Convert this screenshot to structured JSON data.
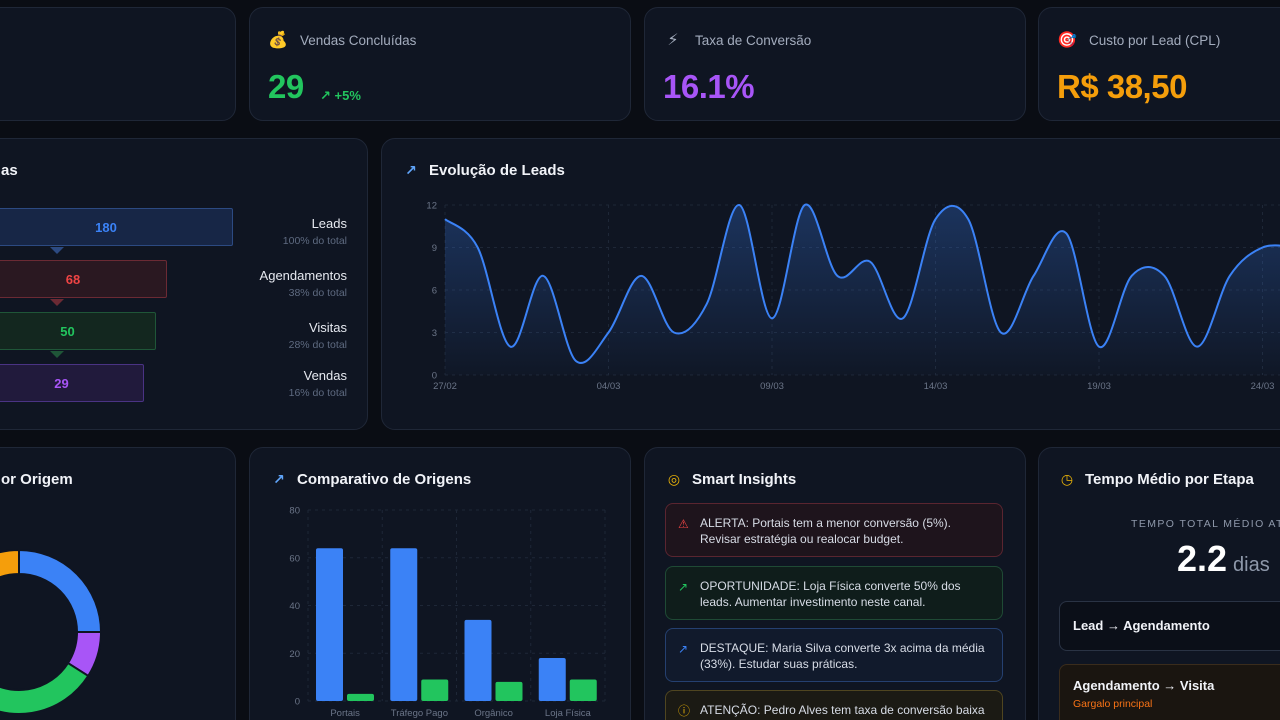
{
  "kpis": [
    {
      "icon": "money-bag-icon",
      "glyph": "💰",
      "label": "Vendas Concluídas",
      "value": "29",
      "delta": "+5%",
      "color": "#22c55e"
    },
    {
      "icon": "lightning-icon",
      "glyph": "⚡",
      "label": "Taxa de Conversão",
      "value": "16.1%",
      "color": "#a855f7"
    },
    {
      "icon": "target-icon",
      "glyph": "🎯",
      "label": "Custo por Lead (CPL)",
      "value": "R$ 38,50",
      "color": "#f59e0b"
    }
  ],
  "funnel": {
    "title_fragment": "as",
    "stages": [
      {
        "value": "180",
        "name": "Leads",
        "sub": "100% do total",
        "color": "#3b82f6",
        "bg": "#172646",
        "border": "#2c4a82"
      },
      {
        "value": "68",
        "name": "Agendamentos",
        "sub": "38% do total",
        "color": "#ef4444",
        "bg": "#2a1821",
        "border": "#6b2a34"
      },
      {
        "value": "50",
        "name": "Visitas",
        "sub": "28% do total",
        "color": "#22c55e",
        "bg": "#13271f",
        "border": "#1f5638"
      },
      {
        "value": "29",
        "name": "Vendas",
        "sub": "16% do total",
        "color": "#a855f7",
        "bg": "#211a3c",
        "border": "#4a3384"
      }
    ]
  },
  "leads_chart": {
    "title": "Evolução de Leads",
    "chart_data": {
      "type": "area",
      "ylim": [
        0,
        12
      ],
      "yticks": [
        "0",
        "3",
        "6",
        "9",
        "12"
      ],
      "xtick_labels": [
        "27/02",
        "04/03",
        "09/03",
        "14/03",
        "19/03",
        "24/03"
      ],
      "series": [
        {
          "values": [
            11,
            9,
            2,
            7,
            1,
            3,
            7,
            3,
            5,
            12,
            4,
            12,
            7,
            8,
            4,
            11,
            11,
            3,
            7,
            10,
            2,
            7,
            7,
            2,
            7,
            9,
            9
          ]
        }
      ],
      "color": "#3b82f6"
    }
  },
  "origin_donut": {
    "title_fragment": "or Origem",
    "chart_data": {
      "type": "pie",
      "series": [
        {
          "values": [
            25,
            9,
            27,
            39
          ]
        }
      ],
      "colors": [
        "#3b82f6",
        "#a855f7",
        "#22c55e",
        "#f59e0b"
      ]
    }
  },
  "compare_chart": {
    "title": "Comparativo de Origens",
    "chart_data": {
      "type": "bar",
      "categories": [
        "Portais",
        "Tráfego Pago",
        "Orgânico",
        "Loja Física"
      ],
      "series": [
        {
          "values": [
            64,
            64,
            34,
            18
          ],
          "color": "#3b82f6"
        },
        {
          "values": [
            3,
            9,
            8,
            9
          ],
          "color": "#22c55e"
        }
      ],
      "ylim": [
        0,
        80
      ],
      "yticks": [
        "0",
        "20",
        "40",
        "60",
        "80"
      ]
    }
  },
  "insights": {
    "title": "Smart Insights",
    "items": [
      {
        "icon": "warning-icon",
        "glyph": "⚠",
        "text": "ALERTA: Portais tem a menor conversão (5%). Revisar estratégia ou realocar budget.",
        "color": "#ef4444",
        "bg": "#1e141c",
        "border": "#5a2530"
      },
      {
        "icon": "trend-up-icon",
        "glyph": "↗",
        "text": "OPORTUNIDADE: Loja Física converte 50% dos leads. Aumentar investimento neste canal.",
        "color": "#22c55e",
        "bg": "#0f1d1b",
        "border": "#1f4a35"
      },
      {
        "icon": "trend-up-icon",
        "glyph": "↗",
        "text": "DESTAQUE: Maria Silva converte 3x acima da média (33%). Estudar suas práticas.",
        "color": "#3b82f6",
        "bg": "#111a2c",
        "border": "#254070"
      },
      {
        "icon": "info-icon",
        "glyph": "ⓘ",
        "text": "ATENÇÃO: Pedro Alves tem taxa de conversão baixa",
        "color": "#eab308",
        "bg": "#1b1a14",
        "border": "#4f4520"
      }
    ]
  },
  "time_card": {
    "title": "Tempo Médio por Etapa",
    "total_label": "TEMPO TOTAL MÉDIO ATE",
    "total_value": "2.2",
    "total_unit": "dias",
    "stages": [
      {
        "name": "Lead → Agendamento",
        "sub": ""
      },
      {
        "name": "Agendamento → Visita",
        "sub": "Gargalo principal"
      }
    ]
  }
}
